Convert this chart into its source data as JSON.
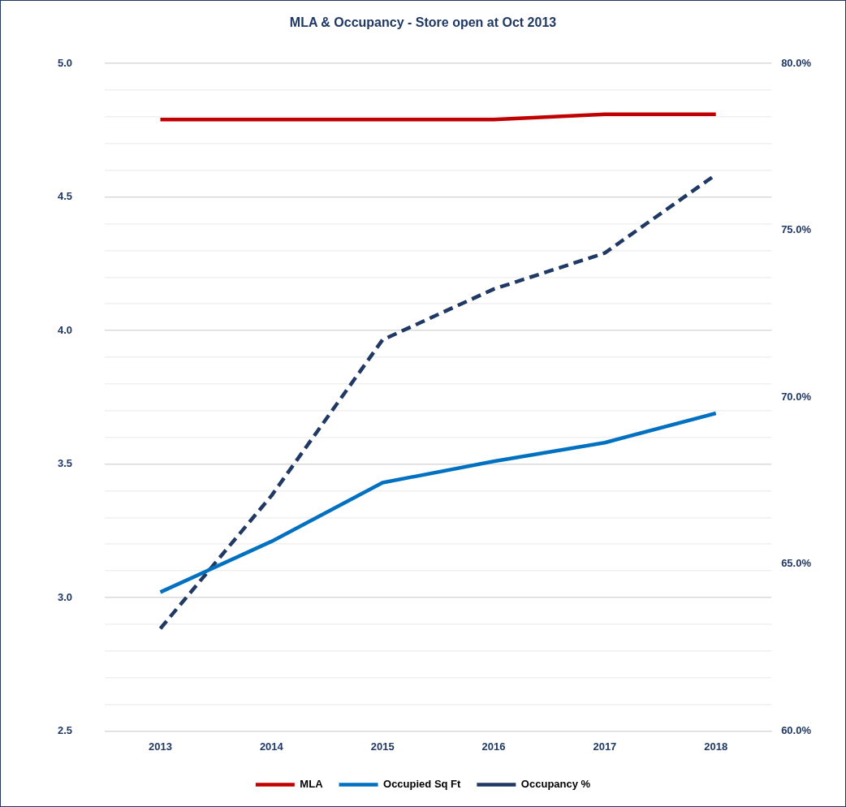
{
  "chart_data": {
    "type": "line",
    "title": "MLA & Occupancy - Store open at Oct 2013",
    "categories": [
      "2013",
      "2014",
      "2015",
      "2016",
      "2017",
      "2018"
    ],
    "series": [
      {
        "name": "MLA",
        "color": "#c00000",
        "values": [
          4.79,
          4.79,
          4.79,
          4.79,
          4.81,
          4.81
        ]
      },
      {
        "name": "Occupied Sq Ft",
        "color": "#0070c0",
        "values": [
          3.02,
          3.21,
          3.43,
          3.51,
          3.58,
          3.69
        ]
      },
      {
        "name": "Occupancy %",
        "color": "#1f3864",
        "axis": "y2",
        "line_style": "dashed",
        "values": [
          63.07,
          67.05,
          71.72,
          73.24,
          74.32,
          76.67
        ]
      }
    ],
    "ylim": [
      2.5,
      5.0
    ],
    "yticks": [
      2.5,
      {
        "value": 2.6,
        "label": null
      },
      {
        "value": 2.7,
        "label": null
      },
      {
        "value": 2.8,
        "label": null
      },
      {
        "value": 2.9,
        "label": null
      },
      {
        "value": 3.0,
        "label": "3.0"
      },
      {
        "value": 3.1,
        "label": null
      },
      {
        "value": 3.2,
        "label": null
      },
      {
        "value": 3.3,
        "label": null
      },
      {
        "value": 3.4,
        "label": null
      },
      3.5,
      {
        "value": 3.6,
        "label": null
      },
      {
        "value": 3.7,
        "label": null
      },
      {
        "value": 3.8,
        "label": null
      },
      {
        "value": 3.9,
        "label": null
      },
      {
        "value": 4.0,
        "label": "4.0"
      },
      {
        "value": 4.1,
        "label": null
      },
      {
        "value": 4.2,
        "label": null
      },
      {
        "value": 4.3,
        "label": null
      },
      {
        "value": 4.4,
        "label": null
      },
      4.5,
      {
        "value": 4.6,
        "label": null
      },
      {
        "value": 4.7,
        "label": null
      },
      {
        "value": 4.8,
        "label": null
      },
      {
        "value": 4.9,
        "label": null
      },
      {
        "value": 5.0,
        "label": "5.0"
      }
    ],
    "y2lim": [
      60,
      80
    ],
    "y2ticks": [
      {
        "value": 60,
        "label": "60.0%"
      },
      {
        "value": 65,
        "label": "65.0%"
      },
      {
        "value": 70,
        "label": "70.0%"
      },
      {
        "value": 75,
        "label": "75.0%"
      },
      {
        "value": 80,
        "label": "80.0%"
      }
    ],
    "grid": "y",
    "legend": "bottom",
    "marker": "none"
  }
}
